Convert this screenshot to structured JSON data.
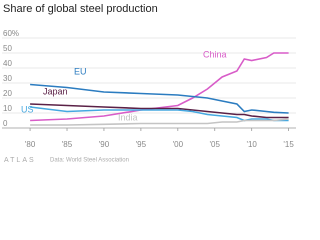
{
  "chart_data": {
    "type": "line",
    "title": "Share of global steel production",
    "x": [
      1980,
      1985,
      1990,
      1995,
      2000,
      2002,
      2004,
      2006,
      2008,
      2009,
      2010,
      2012,
      2013,
      2015
    ],
    "series": [
      {
        "name": "China",
        "color": "#d85cc8",
        "values": [
          5,
          6,
          8,
          12,
          15,
          20,
          26,
          34,
          38,
          46,
          45,
          47,
          50,
          50
        ]
      },
      {
        "name": "EU",
        "color": "#2b7cc0",
        "values": [
          29,
          27,
          24,
          23,
          22,
          21,
          20,
          18,
          16,
          11,
          12,
          11,
          10.5,
          10
        ]
      },
      {
        "name": "Japan",
        "color": "#5a2046",
        "values": [
          16,
          15,
          14,
          13,
          13,
          12,
          11,
          10,
          9,
          9,
          8,
          7,
          7,
          7
        ]
      },
      {
        "name": "US",
        "color": "#45a8e0",
        "values": [
          14,
          11,
          12,
          12,
          12,
          11,
          9,
          8,
          7,
          5,
          6,
          6,
          5,
          5
        ]
      },
      {
        "name": "India",
        "color": "#c4c4c4",
        "values": [
          2,
          2,
          2.5,
          3,
          3,
          3,
          3,
          4,
          4,
          5,
          5,
          5,
          5,
          6
        ]
      }
    ],
    "xlim": [
      1978.5,
      2016
    ],
    "ylim": [
      0,
      60
    ],
    "xticks": [
      {
        "value": 1980,
        "label": "'80"
      },
      {
        "value": 1985,
        "label": "'85"
      },
      {
        "value": 1990,
        "label": "'90"
      },
      {
        "value": 1995,
        "label": "'95"
      },
      {
        "value": 2000,
        "label": "'00"
      },
      {
        "value": 2005,
        "label": "'05"
      },
      {
        "value": 2010,
        "label": "'10"
      },
      {
        "value": 2015,
        "label": "'15"
      }
    ],
    "yticks": [
      0,
      10,
      20,
      30,
      40,
      50,
      {
        "value": 60,
        "label": "60%"
      }
    ],
    "grid": true,
    "logo": "ATLAS",
    "source": "Data: World Steel Association"
  }
}
